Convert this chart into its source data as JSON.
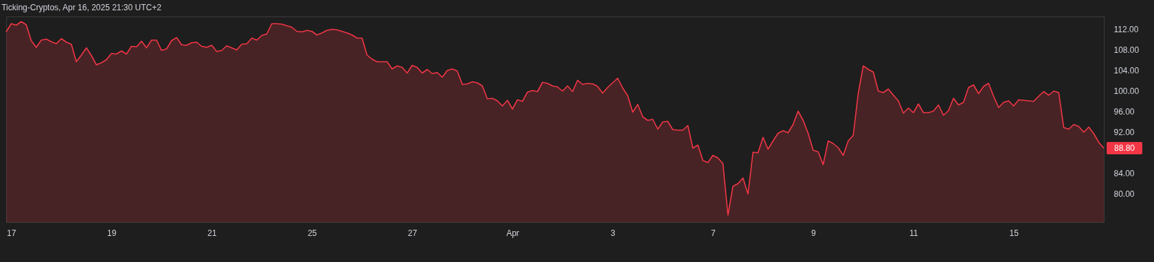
{
  "chart_data": {
    "type": "area",
    "title": "Ticking-Cryptos, Apr 16, 2025 21:30 UTC+2",
    "categories": [
      null,
      "17",
      null,
      null,
      null,
      null,
      null,
      null,
      null,
      null,
      null,
      null,
      null,
      null,
      null,
      null,
      null,
      null,
      null,
      null,
      null,
      "19",
      null,
      null,
      null,
      null,
      null,
      null,
      null,
      null,
      null,
      null,
      null,
      null,
      null,
      null,
      null,
      null,
      null,
      null,
      null,
      "21",
      null,
      null,
      null,
      null,
      null,
      null,
      null,
      null,
      null,
      null,
      null,
      null,
      null,
      null,
      null,
      null,
      null,
      null,
      null,
      "25",
      null,
      null,
      null,
      null,
      null,
      null,
      null,
      null,
      null,
      null,
      null,
      null,
      null,
      null,
      null,
      null,
      null,
      null,
      null,
      "27",
      null,
      null,
      null,
      null,
      null,
      null,
      null,
      null,
      null,
      null,
      null,
      null,
      null,
      null,
      null,
      null,
      null,
      null,
      null,
      "Apr",
      null,
      null,
      null,
      null,
      null,
      null,
      null,
      null,
      null,
      null,
      null,
      null,
      null,
      null,
      null,
      null,
      null,
      null,
      null,
      "3",
      null,
      null,
      null,
      null,
      null,
      null,
      null,
      null,
      null,
      null,
      null,
      null,
      null,
      null,
      null,
      null,
      null,
      null,
      null,
      "7",
      null,
      null,
      null,
      null,
      null,
      null,
      null,
      null,
      null,
      null,
      null,
      null,
      null,
      null,
      null,
      null,
      null,
      null,
      null,
      "9",
      null,
      null,
      null,
      null,
      null,
      null,
      null,
      null,
      null,
      null,
      null,
      null,
      null,
      null,
      null,
      null,
      null,
      null,
      null,
      "11",
      null,
      null,
      null,
      null,
      null,
      null,
      null,
      null,
      null,
      null,
      null,
      null,
      null,
      null,
      null,
      null,
      null,
      null,
      null,
      "15",
      null,
      null,
      null,
      null,
      null,
      null,
      null,
      null,
      null,
      null,
      null,
      null,
      null,
      null,
      null,
      null,
      null,
      null
    ],
    "ylim": [
      74.4,
      114.4
    ],
    "yticks": [
      {
        "value": 80,
        "label": "80.00"
      },
      {
        "value": 84,
        "label": "84.00"
      },
      {
        "value": 92,
        "label": "92.00"
      },
      {
        "value": 96,
        "label": "96.00"
      },
      {
        "value": 100,
        "label": "100.00"
      },
      {
        "value": 104,
        "label": "104.00"
      },
      {
        "value": 108,
        "label": "108.00"
      },
      {
        "value": 112,
        "label": "112.00"
      }
    ],
    "grid": false,
    "annotations": [
      "88.80"
    ],
    "series": [
      {
        "color": "#f23645",
        "values": [
          111.4,
          113.0,
          112.7,
          113.4,
          112.8,
          109.7,
          108.4,
          109.8,
          110.0,
          109.5,
          109.1,
          110.1,
          109.4,
          109.0,
          105.6,
          106.9,
          108.3,
          106.8,
          105.0,
          105.4,
          106.0,
          107.2,
          107.1,
          107.7,
          107.1,
          108.6,
          108.5,
          109.6,
          108.3,
          109.8,
          109.8,
          107.8,
          108.1,
          109.7,
          110.3,
          108.9,
          108.8,
          109.3,
          109.4,
          108.6,
          108.4,
          108.8,
          107.6,
          107.8,
          108.7,
          108.3,
          107.9,
          109.0,
          109.1,
          110.2,
          109.8,
          110.7,
          111.0,
          113.0,
          113.0,
          112.9,
          112.6,
          112.3,
          111.5,
          111.4,
          111.7,
          111.5,
          110.8,
          111.2,
          111.7,
          111.9,
          111.8,
          111.5,
          111.2,
          110.8,
          110.2,
          110.2,
          106.9,
          106.1,
          105.6,
          105.6,
          105.6,
          104.2,
          104.8,
          104.5,
          103.4,
          104.9,
          104.5,
          103.4,
          104.1,
          103.3,
          103.5,
          102.6,
          103.9,
          104.2,
          103.8,
          101.2,
          101.3,
          101.7,
          101.5,
          100.9,
          98.4,
          98.5,
          98.0,
          97.0,
          98.1,
          96.4,
          98.2,
          97.9,
          99.7,
          100.0,
          99.8,
          101.6,
          101.4,
          100.9,
          100.7,
          99.9,
          100.9,
          99.8,
          102.0,
          101.2,
          101.4,
          101.3,
          100.8,
          99.5,
          100.6,
          101.5,
          102.4,
          100.5,
          99.0,
          95.8,
          97.3,
          94.9,
          94.2,
          94.4,
          92.5,
          93.9,
          94.0,
          92.4,
          92.3,
          92.3,
          93.2,
          88.8,
          89.4,
          86.4,
          86.0,
          87.4,
          86.9,
          85.8,
          75.8,
          81.4,
          81.9,
          83.0,
          79.9,
          88.0,
          87.9,
          90.9,
          88.6,
          90.2,
          91.7,
          92.2,
          91.8,
          93.4,
          96.0,
          94.2,
          91.7,
          88.4,
          88.1,
          85.6,
          90.2,
          89.7,
          88.9,
          87.4,
          90.2,
          91.3,
          99.5,
          104.8,
          104.1,
          103.6,
          99.9,
          99.6,
          100.3,
          99.1,
          98.0,
          95.6,
          96.6,
          95.7,
          97.4,
          95.7,
          95.7,
          96.0,
          97.2,
          95.2,
          96.1,
          98.5,
          97.2,
          97.7,
          100.6,
          101.1,
          99.4,
          100.8,
          101.4,
          98.9,
          96.7,
          97.7,
          98.0,
          97.0,
          98.2,
          98.1,
          98.0,
          97.9,
          98.9,
          99.8,
          99.1,
          99.9,
          99.6,
          92.8,
          92.5,
          93.4,
          93.0,
          91.9,
          92.9,
          91.6,
          89.9,
          88.8
        ]
      }
    ]
  }
}
